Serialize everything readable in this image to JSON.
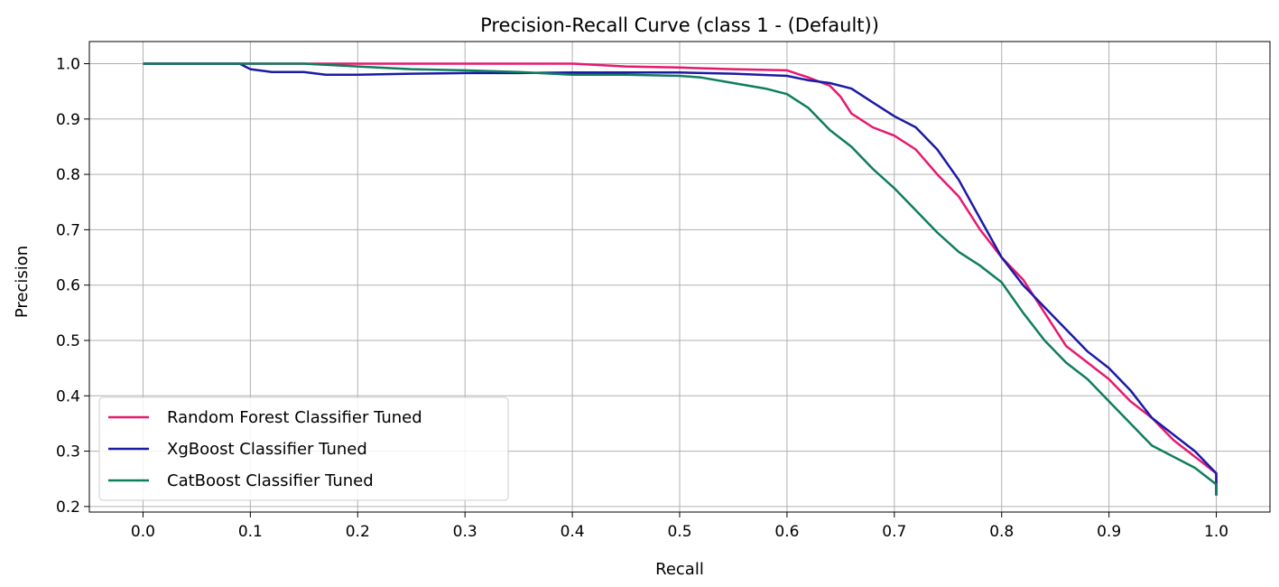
{
  "chart_data": {
    "type": "line",
    "title": "Precision-Recall Curve (class 1 - (Default))",
    "xlabel": "Recall",
    "ylabel": "Precision",
    "xlim": [
      -0.05,
      1.05
    ],
    "ylim": [
      0.19,
      1.04
    ],
    "xticks": [
      "0.0",
      "0.1",
      "0.2",
      "0.3",
      "0.4",
      "0.5",
      "0.6",
      "0.7",
      "0.8",
      "0.9",
      "1.0"
    ],
    "xtick_values": [
      0.0,
      0.1,
      0.2,
      0.3,
      0.4,
      0.5,
      0.6,
      0.7,
      0.8,
      0.9,
      1.0
    ],
    "yticks": [
      "0.2",
      "0.3",
      "0.4",
      "0.5",
      "0.6",
      "0.7",
      "0.8",
      "0.9",
      "1.0"
    ],
    "ytick_values": [
      0.2,
      0.3,
      0.4,
      0.5,
      0.6,
      0.7,
      0.8,
      0.9,
      1.0
    ],
    "grid": true,
    "legend_position": "lower-left",
    "series": [
      {
        "name": "Random Forest Classifier Tuned",
        "color": "#e6196e",
        "x": [
          0.0,
          0.1,
          0.2,
          0.3,
          0.4,
          0.45,
          0.5,
          0.55,
          0.6,
          0.62,
          0.64,
          0.65,
          0.66,
          0.68,
          0.7,
          0.72,
          0.74,
          0.76,
          0.78,
          0.8,
          0.82,
          0.84,
          0.86,
          0.88,
          0.9,
          0.92,
          0.94,
          0.96,
          0.98,
          1.0,
          1.0
        ],
        "y": [
          1.0,
          1.0,
          1.0,
          1.0,
          1.0,
          0.995,
          0.993,
          0.99,
          0.988,
          0.975,
          0.96,
          0.94,
          0.91,
          0.885,
          0.87,
          0.845,
          0.8,
          0.76,
          0.7,
          0.65,
          0.61,
          0.55,
          0.49,
          0.46,
          0.43,
          0.39,
          0.36,
          0.32,
          0.29,
          0.26,
          0.22
        ]
      },
      {
        "name": "XgBoost Classifier Tuned",
        "color": "#1b1aa6",
        "x": [
          0.0,
          0.05,
          0.09,
          0.1,
          0.12,
          0.15,
          0.17,
          0.2,
          0.25,
          0.3,
          0.35,
          0.4,
          0.45,
          0.5,
          0.55,
          0.6,
          0.62,
          0.64,
          0.66,
          0.68,
          0.7,
          0.72,
          0.74,
          0.76,
          0.78,
          0.8,
          0.82,
          0.84,
          0.86,
          0.88,
          0.9,
          0.92,
          0.94,
          0.96,
          0.98,
          1.0,
          1.0
        ],
        "y": [
          1.0,
          1.0,
          1.0,
          0.99,
          0.985,
          0.985,
          0.98,
          0.98,
          0.982,
          0.983,
          0.983,
          0.984,
          0.984,
          0.984,
          0.982,
          0.978,
          0.97,
          0.965,
          0.955,
          0.93,
          0.905,
          0.885,
          0.845,
          0.79,
          0.72,
          0.65,
          0.6,
          0.56,
          0.52,
          0.48,
          0.45,
          0.41,
          0.36,
          0.33,
          0.3,
          0.26,
          0.22
        ]
      },
      {
        "name": "CatBoost Classifier Tuned",
        "color": "#0f7d5e",
        "x": [
          0.0,
          0.1,
          0.15,
          0.2,
          0.25,
          0.3,
          0.35,
          0.4,
          0.45,
          0.5,
          0.52,
          0.55,
          0.58,
          0.6,
          0.62,
          0.64,
          0.66,
          0.68,
          0.7,
          0.72,
          0.74,
          0.76,
          0.78,
          0.8,
          0.82,
          0.84,
          0.86,
          0.88,
          0.9,
          0.92,
          0.94,
          0.96,
          0.98,
          1.0,
          1.0
        ],
        "y": [
          1.0,
          1.0,
          1.0,
          0.995,
          0.99,
          0.988,
          0.985,
          0.98,
          0.98,
          0.978,
          0.975,
          0.965,
          0.955,
          0.945,
          0.92,
          0.88,
          0.85,
          0.81,
          0.775,
          0.735,
          0.695,
          0.66,
          0.635,
          0.605,
          0.55,
          0.5,
          0.46,
          0.43,
          0.39,
          0.35,
          0.31,
          0.29,
          0.27,
          0.24,
          0.22
        ]
      }
    ]
  }
}
